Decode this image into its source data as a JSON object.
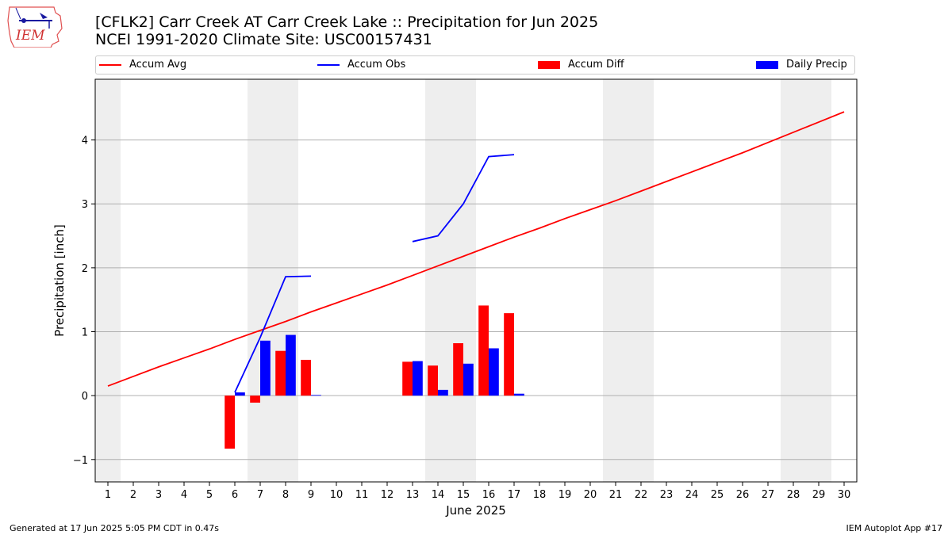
{
  "title_line1": "[CFLK2] Carr Creek  AT Carr Creek Lake :: Precipitation for Jun 2025",
  "title_line2": "NCEI 1991-2020 Climate Site: USC00157431",
  "logo_text": "IEM",
  "footer_left": "Generated at 17 Jun 2025 5:05 PM CDT in 0.47s",
  "footer_right": "IEM Autoplot App #17",
  "legend": [
    {
      "label": "Accum Avg",
      "kind": "line",
      "color": "#ff0000"
    },
    {
      "label": "Accum Obs",
      "kind": "line",
      "color": "#0000ff"
    },
    {
      "label": "Accum Diff",
      "kind": "box",
      "color": "#ff0000"
    },
    {
      "label": "Daily Precip",
      "kind": "box",
      "color": "#0000ff"
    }
  ],
  "chart_data": {
    "type": "bar",
    "xlabel": "June 2025",
    "ylabel": "Precipitation [inch]",
    "xlim": [
      0.5,
      30.5
    ],
    "ylim": [
      -1.35,
      4.95
    ],
    "x_ticks": [
      1,
      2,
      3,
      4,
      5,
      6,
      7,
      8,
      9,
      10,
      11,
      12,
      13,
      14,
      15,
      16,
      17,
      18,
      19,
      20,
      21,
      22,
      23,
      24,
      25,
      26,
      27,
      28,
      29,
      30
    ],
    "y_ticks": [
      -1,
      0,
      1,
      2,
      3,
      4
    ],
    "y_tick_labels": [
      "−1",
      "0",
      "1",
      "2",
      "3",
      "4"
    ],
    "grid": "horizontal",
    "weekend_shading": [
      [
        0.5,
        1.5
      ],
      [
        6.5,
        8.5
      ],
      [
        13.5,
        15.5
      ],
      [
        20.5,
        22.5
      ],
      [
        27.5,
        29.5
      ]
    ],
    "shade_color": "#eeeeee",
    "series": [
      {
        "name": "Accum Avg",
        "kind": "line",
        "color": "#ff0000",
        "points": [
          [
            1,
            0.15
          ],
          [
            2,
            0.3
          ],
          [
            3,
            0.45
          ],
          [
            4,
            0.59
          ],
          [
            5,
            0.73
          ],
          [
            6,
            0.88
          ],
          [
            7,
            1.02
          ],
          [
            8,
            1.16
          ],
          [
            9,
            1.31
          ],
          [
            10,
            1.45
          ],
          [
            11,
            1.59
          ],
          [
            12,
            1.73
          ],
          [
            13,
            1.88
          ],
          [
            14,
            2.03
          ],
          [
            15,
            2.18
          ],
          [
            16,
            2.33
          ],
          [
            17,
            2.48
          ],
          [
            18,
            2.62
          ],
          [
            19,
            2.77
          ],
          [
            20,
            2.91
          ],
          [
            21,
            3.05
          ],
          [
            22,
            3.2
          ],
          [
            23,
            3.35
          ],
          [
            24,
            3.5
          ],
          [
            25,
            3.65
          ],
          [
            26,
            3.8
          ],
          [
            27,
            3.96
          ],
          [
            28,
            4.12
          ],
          [
            29,
            4.28
          ],
          [
            30,
            4.44
          ]
        ]
      },
      {
        "name": "Accum Obs",
        "kind": "line",
        "color": "#0000ff",
        "segments": [
          [
            [
              6,
              0.05
            ],
            [
              7,
              0.91
            ],
            [
              8,
              1.86
            ],
            [
              9,
              1.87
            ]
          ],
          [
            [
              13,
              2.41
            ],
            [
              14,
              2.5
            ],
            [
              15,
              3.0
            ],
            [
              16,
              3.74
            ],
            [
              17,
              3.77
            ]
          ]
        ]
      },
      {
        "name": "Accum Diff",
        "kind": "bar",
        "color": "#ff0000",
        "offset": -0.2,
        "points": [
          [
            6,
            -0.83
          ],
          [
            7,
            -0.11
          ],
          [
            8,
            0.7
          ],
          [
            9,
            0.56
          ],
          [
            13,
            0.53
          ],
          [
            14,
            0.47
          ],
          [
            15,
            0.82
          ],
          [
            16,
            1.41
          ],
          [
            17,
            1.29
          ]
        ]
      },
      {
        "name": "Daily Precip",
        "kind": "bar",
        "color": "#0000ff",
        "offset": 0.2,
        "points": [
          [
            6,
            0.05
          ],
          [
            7,
            0.86
          ],
          [
            8,
            0.95
          ],
          [
            9,
            0.01
          ],
          [
            13,
            0.54
          ],
          [
            14,
            0.09
          ],
          [
            15,
            0.5
          ],
          [
            16,
            0.74
          ],
          [
            17,
            0.03
          ]
        ]
      }
    ]
  }
}
